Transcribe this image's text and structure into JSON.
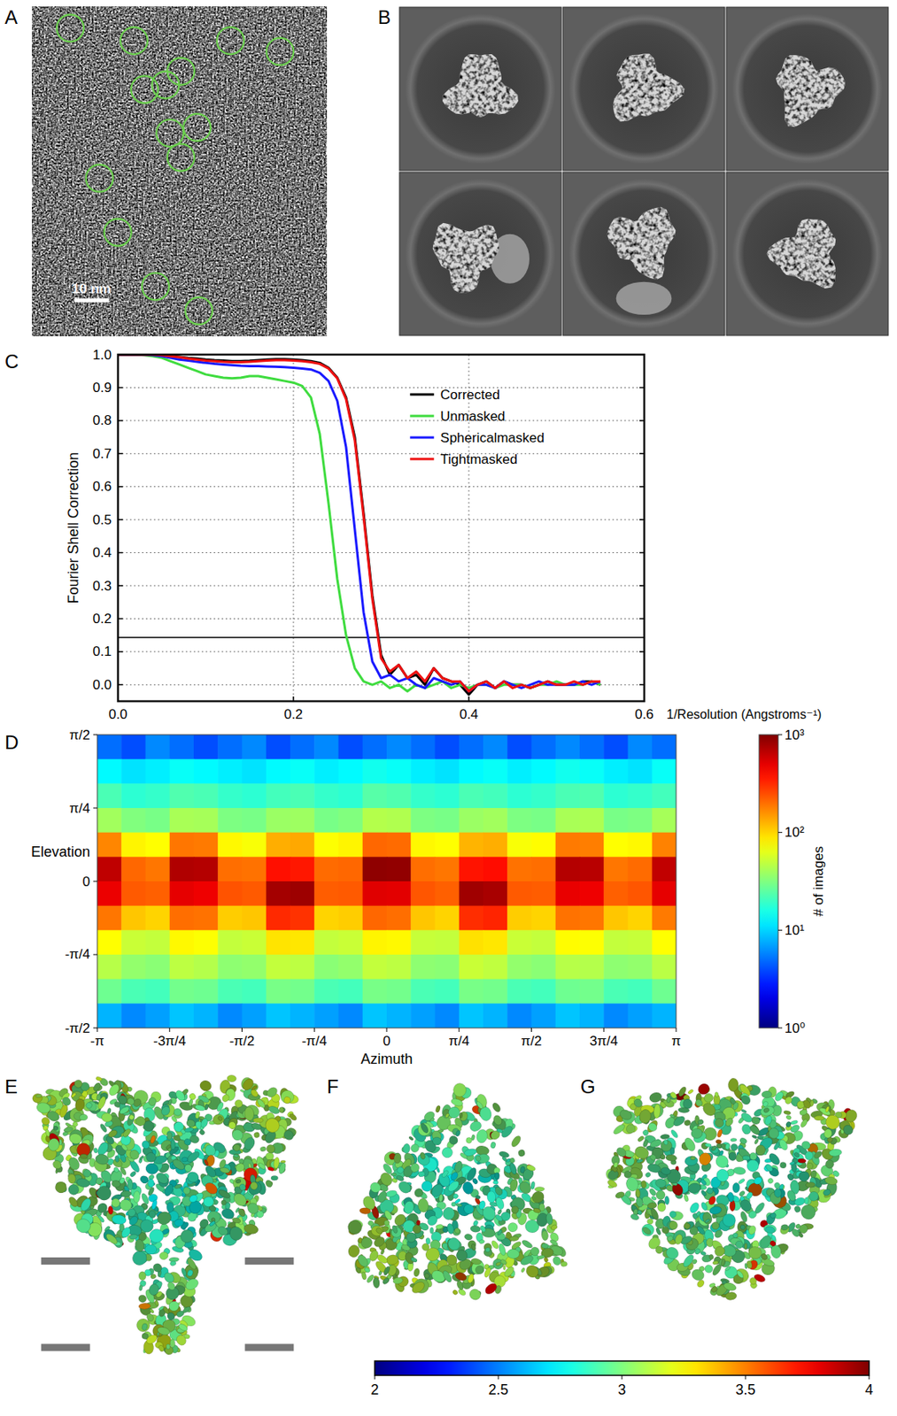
{
  "chart_data": [
    {
      "type": "micrograph",
      "title": "A",
      "annotations": [
        "10 nm"
      ]
    },
    {
      "type": "class_averages",
      "title": "B"
    },
    {
      "type": "line",
      "title": "C",
      "xlabel": "1/Resolution (Angstroms⁻¹)",
      "ylabel": "Fourier Shell Correction",
      "x": [
        0,
        0.01,
        0.02,
        0.03,
        0.04,
        0.05,
        0.06,
        0.07,
        0.08,
        0.09,
        0.1,
        0.11,
        0.12,
        0.13,
        0.14,
        0.15,
        0.16,
        0.17,
        0.18,
        0.19,
        0.2,
        0.21,
        0.22,
        0.23,
        0.24,
        0.25,
        0.26,
        0.27,
        0.28,
        0.29,
        0.3,
        0.31,
        0.32,
        0.33,
        0.34,
        0.35,
        0.36,
        0.37,
        0.38,
        0.39,
        0.4,
        0.41,
        0.42,
        0.43,
        0.44,
        0.45,
        0.46,
        0.47,
        0.48,
        0.49,
        0.5,
        0.51,
        0.52,
        0.53,
        0.54,
        0.55
      ],
      "series": [
        {
          "name": "Corrected",
          "color": "#000000",
          "values": [
            1,
            1,
            1,
            1,
            1,
            0.998,
            0.995,
            0.993,
            0.99,
            0.988,
            0.985,
            0.983,
            0.982,
            0.98,
            0.98,
            0.981,
            0.983,
            0.985,
            0.986,
            0.986,
            0.985,
            0.983,
            0.98,
            0.975,
            0.96,
            0.93,
            0.87,
            0.75,
            0.52,
            0.27,
            0.09,
            0.03,
            0.06,
            0.02,
            0.03,
            0,
            0.05,
            0.02,
            0.01,
            0,
            -0.03,
            0,
            0.01,
            -0.01,
            0.01,
            0,
            0,
            -0.01,
            0,
            0.01,
            0,
            0,
            0,
            0.01,
            0.01,
            0
          ]
        },
        {
          "name": "Unmasked",
          "color": "#3fdc3f",
          "values": [
            1,
            1,
            1,
            0.998,
            0.995,
            0.99,
            0.98,
            0.97,
            0.96,
            0.95,
            0.94,
            0.935,
            0.93,
            0.928,
            0.93,
            0.935,
            0.935,
            0.93,
            0.925,
            0.92,
            0.915,
            0.905,
            0.87,
            0.76,
            0.55,
            0.32,
            0.15,
            0.05,
            0.01,
            0,
            0.01,
            -0.01,
            0,
            -0.02,
            0,
            -0.01,
            0,
            0.01,
            -0.01,
            0,
            -0.01,
            0,
            0,
            -0.01,
            0,
            0,
            0,
            -0.01,
            0,
            0,
            0.01,
            0,
            0,
            0,
            0.01,
            0
          ]
        },
        {
          "name": "Sphericalmasked",
          "color": "#1a1aff",
          "values": [
            1,
            1,
            1,
            1,
            0.998,
            0.995,
            0.99,
            0.985,
            0.982,
            0.978,
            0.975,
            0.972,
            0.97,
            0.968,
            0.966,
            0.965,
            0.965,
            0.964,
            0.963,
            0.962,
            0.96,
            0.958,
            0.955,
            0.945,
            0.92,
            0.86,
            0.72,
            0.47,
            0.22,
            0.07,
            0.02,
            0.03,
            0.01,
            0.02,
            0,
            -0.01,
            0.02,
            0.01,
            0,
            0.01,
            -0.02,
            0,
            0,
            -0.01,
            0.01,
            0,
            -0.01,
            0,
            0.01,
            0,
            0,
            0,
            0,
            0.01,
            0,
            0.01
          ]
        },
        {
          "name": "Tightmasked",
          "color": "#ee1111",
          "values": [
            1,
            1,
            1,
            1,
            1,
            0.998,
            0.995,
            0.992,
            0.988,
            0.985,
            0.982,
            0.98,
            0.978,
            0.977,
            0.977,
            0.978,
            0.98,
            0.982,
            0.983,
            0.983,
            0.982,
            0.98,
            0.977,
            0.972,
            0.958,
            0.928,
            0.865,
            0.74,
            0.51,
            0.26,
            0.08,
            0.04,
            0.06,
            0.02,
            0.04,
            0.01,
            0.05,
            0.02,
            0.01,
            0.01,
            -0.02,
            0,
            0.01,
            -0.01,
            0.01,
            -0.01,
            0,
            -0.01,
            0,
            0.01,
            0,
            0,
            0.01,
            0,
            0.01,
            0.01
          ]
        }
      ],
      "xlim": [
        0,
        0.6
      ],
      "xticks": [
        {
          "value": 0,
          "label": "0.0"
        },
        0.2,
        0.4,
        0.6
      ],
      "ylim": [
        -0.05,
        1.0
      ],
      "yticks": [
        {
          "value": 0,
          "label": "0.0"
        },
        0.1,
        0.2,
        0.3,
        0.4,
        0.5,
        0.6,
        0.7,
        0.8,
        0.9,
        {
          "value": 1,
          "label": "1.0"
        }
      ],
      "hline": 0.143,
      "grid": true,
      "legend": "upper-right"
    },
    {
      "type": "heatmap",
      "title": "D",
      "xlabel": "Azimuth",
      "ylabel": "Elevation",
      "xlim": [
        -3.14159,
        3.14159
      ],
      "xticks": [
        {
          "value": -3.14159,
          "label": "-π"
        },
        {
          "value": -2.35619,
          "label": "-3π/4"
        },
        {
          "value": -1.5708,
          "label": "-π/2"
        },
        {
          "value": -0.785398,
          "label": "-π/4"
        },
        0,
        {
          "value": 0.785398,
          "label": "π/4"
        },
        {
          "value": 1.5708,
          "label": "π/2"
        },
        {
          "value": 2.35619,
          "label": "3π/4"
        },
        {
          "value": 3.14159,
          "label": "π"
        }
      ],
      "ylim": [
        -1.5708,
        1.5708
      ],
      "yticks": [
        {
          "value": -1.5708,
          "label": "-π/2"
        },
        {
          "value": -0.785398,
          "label": "-π/4"
        },
        0,
        {
          "value": 0.785398,
          "label": "π/4"
        },
        {
          "value": 1.5708,
          "label": "π/2"
        }
      ],
      "cells": [
        [
          5,
          4,
          6,
          5,
          4,
          5,
          6,
          4,
          5,
          6,
          4,
          5,
          6,
          5,
          4,
          5,
          6,
          4,
          5,
          6,
          5,
          4,
          6,
          5
        ],
        [
          13,
          11,
          12,
          14,
          13,
          12,
          11,
          13,
          14,
          12,
          13,
          15,
          14,
          12,
          11,
          13,
          14,
          12,
          13,
          15,
          14,
          12,
          11,
          14
        ],
        [
          22,
          18,
          19,
          23,
          22,
          19,
          18,
          21,
          22,
          19,
          18,
          24,
          23,
          19,
          18,
          22,
          21,
          18,
          19,
          22,
          23,
          18,
          19,
          21
        ],
        [
          40,
          32,
          30,
          42,
          41,
          31,
          30,
          38,
          39,
          30,
          32,
          45,
          44,
          31,
          30,
          38,
          40,
          31,
          30,
          42,
          43,
          30,
          31,
          41
        ],
        [
          170,
          80,
          75,
          190,
          185,
          78,
          72,
          130,
          135,
          74,
          80,
          210,
          205,
          78,
          75,
          125,
          130,
          72,
          76,
          185,
          180,
          75,
          78,
          175
        ],
        [
          650,
          210,
          190,
          720,
          700,
          200,
          195,
          380,
          360,
          205,
          210,
          900,
          880,
          200,
          190,
          370,
          390,
          195,
          200,
          700,
          680,
          190,
          205,
          640
        ],
        [
          480,
          230,
          220,
          500,
          470,
          240,
          230,
          780,
          820,
          225,
          230,
          520,
          510,
          235,
          220,
          800,
          760,
          230,
          225,
          490,
          470,
          220,
          235,
          500
        ],
        [
          190,
          110,
          100,
          200,
          195,
          105,
          110,
          320,
          300,
          100,
          105,
          210,
          200,
          110,
          100,
          310,
          330,
          105,
          100,
          195,
          190,
          110,
          100,
          185
        ],
        [
          75,
          52,
          50,
          78,
          74,
          50,
          52,
          90,
          88,
          50,
          52,
          80,
          78,
          51,
          50,
          92,
          88,
          52,
          50,
          76,
          74,
          50,
          51,
          75
        ],
        [
          46,
          36,
          34,
          48,
          45,
          35,
          36,
          50,
          48,
          34,
          36,
          50,
          48,
          35,
          34,
          52,
          49,
          36,
          34,
          46,
          45,
          35,
          36,
          47
        ],
        [
          28,
          22,
          21,
          29,
          28,
          22,
          21,
          30,
          29,
          22,
          21,
          30,
          29,
          22,
          21,
          30,
          29,
          22,
          21,
          28,
          29,
          22,
          21,
          28
        ],
        [
          8,
          6,
          7,
          9,
          8,
          6,
          7,
          9,
          8,
          7,
          6,
          9,
          8,
          7,
          6,
          9,
          8,
          6,
          7,
          9,
          8,
          6,
          7,
          8
        ]
      ],
      "colorbar": {
        "label": "# of images",
        "log": true,
        "range": [
          1,
          1000
        ],
        "ticks": [
          {
            "value": 1,
            "label": "10⁰"
          },
          {
            "value": 10,
            "label": "10¹"
          },
          {
            "value": 100,
            "label": "10²"
          },
          {
            "value": 1000,
            "label": "10³"
          }
        ]
      }
    },
    {
      "type": "density_map",
      "title": "E"
    },
    {
      "type": "density_map",
      "title": "F"
    },
    {
      "type": "density_map",
      "title": "G"
    },
    {
      "type": "colorbar",
      "colorbar": {
        "range": [
          2,
          4
        ],
        "ticks": [
          2,
          2.5,
          3,
          3.5,
          4
        ]
      }
    }
  ]
}
